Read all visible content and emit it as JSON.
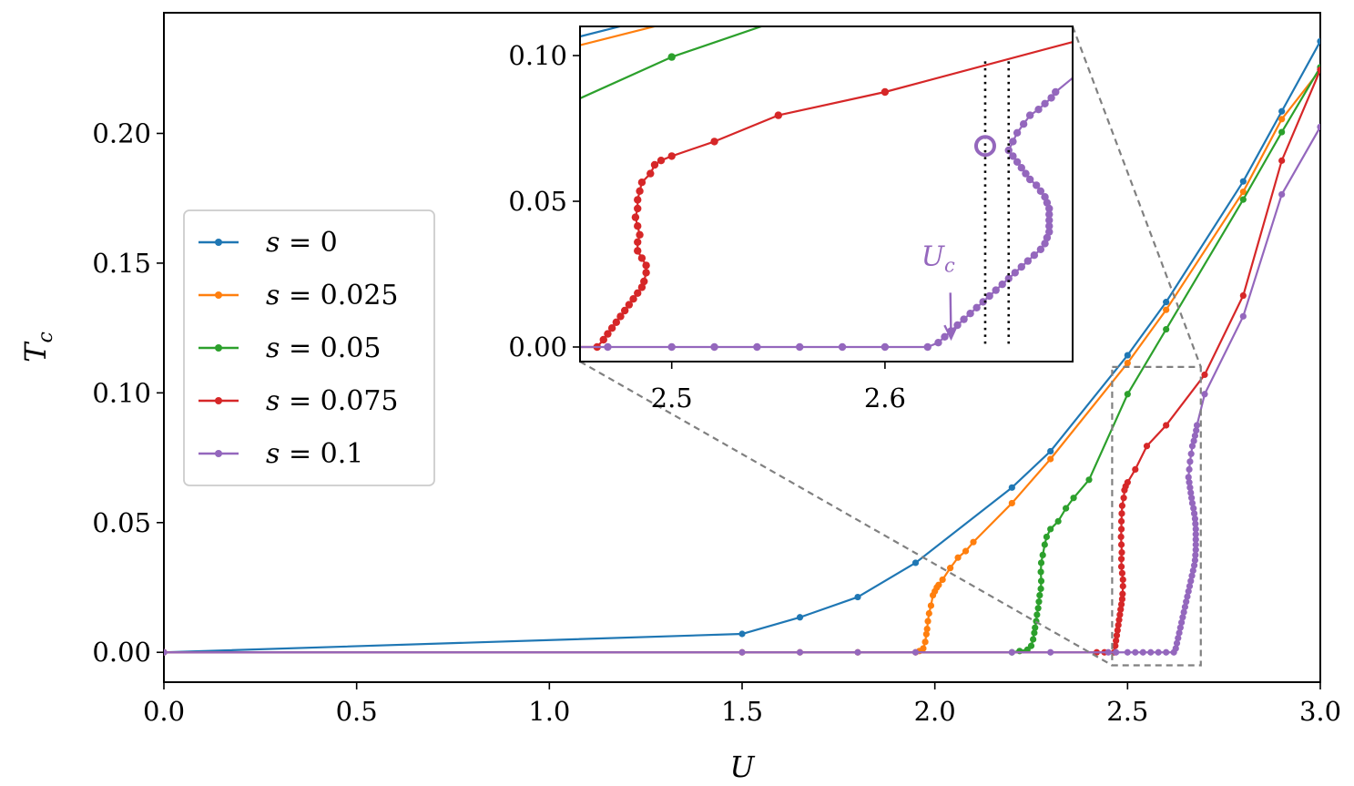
{
  "chart_data": {
    "type": "line",
    "xlabel": "U",
    "ylabel": "T",
    "ylabel_sub": "c",
    "xlim": [
      0.0,
      3.0
    ],
    "ylim": [
      -0.0115,
      0.2465
    ],
    "xticks": [
      0.0,
      0.5,
      1.0,
      1.5,
      2.0,
      2.5,
      3.0
    ],
    "xtick_labels": [
      "0.0",
      "0.5",
      "1.0",
      "1.5",
      "2.0",
      "2.5",
      "3.0"
    ],
    "yticks": [
      0.0,
      0.05,
      0.1,
      0.15,
      0.2
    ],
    "ytick_labels": [
      "0.00",
      "0.05",
      "0.10",
      "0.15",
      "0.20"
    ],
    "legend": {
      "placement": "center-left",
      "entries": [
        {
          "var": "s",
          "eq": " = ",
          "val": "0"
        },
        {
          "var": "s",
          "eq": " = ",
          "val": "0.025"
        },
        {
          "var": "s",
          "eq": " = ",
          "val": "0.05"
        },
        {
          "var": "s",
          "eq": " = ",
          "val": "0.075"
        },
        {
          "var": "s",
          "eq": " = ",
          "val": "0.1"
        }
      ]
    },
    "series": [
      {
        "name": "s = 0",
        "color": "#1f77b4",
        "points": [
          [
            0.0,
            0.0
          ],
          [
            1.5,
            0.0071
          ],
          [
            1.65,
            0.0135
          ],
          [
            1.8,
            0.0213
          ],
          [
            1.95,
            0.0345
          ],
          [
            2.2,
            0.0635
          ],
          [
            2.3,
            0.0775
          ],
          [
            2.5,
            0.1145
          ],
          [
            2.6,
            0.135
          ],
          [
            2.8,
            0.1815
          ],
          [
            2.9,
            0.2085
          ],
          [
            3.0,
            0.2355
          ]
        ]
      },
      {
        "name": "s = 0.025",
        "color": "#ff7f0e",
        "points": [
          [
            0.0,
            0.0
          ],
          [
            1.5,
            0.0
          ],
          [
            1.65,
            0.0
          ],
          [
            1.8,
            0.0
          ],
          [
            1.95,
            0.0
          ],
          [
            1.96,
            0.0005
          ],
          [
            1.97,
            0.0015
          ],
          [
            1.975,
            0.004
          ],
          [
            1.978,
            0.007
          ],
          [
            1.98,
            0.009
          ],
          [
            1.982,
            0.012
          ],
          [
            1.985,
            0.015
          ],
          [
            1.99,
            0.018
          ],
          [
            1.995,
            0.022
          ],
          [
            2.0,
            0.0235
          ],
          [
            2.005,
            0.025
          ],
          [
            2.01,
            0.026
          ],
          [
            2.02,
            0.028
          ],
          [
            2.04,
            0.0325
          ],
          [
            2.06,
            0.0365
          ],
          [
            2.08,
            0.039
          ],
          [
            2.1,
            0.0425
          ],
          [
            2.2,
            0.0575
          ],
          [
            2.3,
            0.0745
          ],
          [
            2.5,
            0.1115
          ],
          [
            2.6,
            0.132
          ],
          [
            2.8,
            0.1775
          ],
          [
            2.9,
            0.2055
          ],
          [
            3.0,
            0.2245
          ]
        ]
      },
      {
        "name": "s = 0.05",
        "color": "#2ca02c",
        "points": [
          [
            0.0,
            0.0
          ],
          [
            2.2,
            0.0
          ],
          [
            2.22,
            0.0005
          ],
          [
            2.24,
            0.001
          ],
          [
            2.25,
            0.0025
          ],
          [
            2.255,
            0.005
          ],
          [
            2.258,
            0.0075
          ],
          [
            2.26,
            0.0095
          ],
          [
            2.263,
            0.012
          ],
          [
            2.265,
            0.0145
          ],
          [
            2.268,
            0.017
          ],
          [
            2.27,
            0.0195
          ],
          [
            2.272,
            0.022
          ],
          [
            2.275,
            0.0245
          ],
          [
            2.276,
            0.0275
          ],
          [
            2.275,
            0.031
          ],
          [
            2.276,
            0.0345
          ],
          [
            2.28,
            0.0375
          ],
          [
            2.285,
            0.0415
          ],
          [
            2.29,
            0.0445
          ],
          [
            2.3,
            0.0475
          ],
          [
            2.32,
            0.0505
          ],
          [
            2.34,
            0.0555
          ],
          [
            2.36,
            0.0595
          ],
          [
            2.4,
            0.0665
          ],
          [
            2.5,
            0.0995
          ],
          [
            2.6,
            0.1245
          ],
          [
            2.8,
            0.1745
          ],
          [
            2.9,
            0.2005
          ],
          [
            3.0,
            0.2255
          ]
        ]
      },
      {
        "name": "s = 0.075",
        "color": "#d62728",
        "points": [
          [
            0.0,
            0.0
          ],
          [
            2.42,
            0.0
          ],
          [
            2.44,
            0.0
          ],
          [
            2.465,
            0.0
          ],
          [
            2.468,
            0.0025
          ],
          [
            2.47,
            0.0045
          ],
          [
            2.472,
            0.0065
          ],
          [
            2.474,
            0.0085
          ],
          [
            2.476,
            0.0105
          ],
          [
            2.478,
            0.0125
          ],
          [
            2.48,
            0.0145
          ],
          [
            2.482,
            0.0165
          ],
          [
            2.484,
            0.0185
          ],
          [
            2.486,
            0.0205
          ],
          [
            2.487,
            0.0225
          ],
          [
            2.488,
            0.0255
          ],
          [
            2.488,
            0.028
          ],
          [
            2.486,
            0.0305
          ],
          [
            2.484,
            0.033
          ],
          [
            2.484,
            0.036
          ],
          [
            2.485,
            0.0385
          ],
          [
            2.484,
            0.0415
          ],
          [
            2.483,
            0.0445
          ],
          [
            2.484,
            0.0475
          ],
          [
            2.484,
            0.0505
          ],
          [
            2.485,
            0.0535
          ],
          [
            2.486,
            0.0565
          ],
          [
            2.49,
            0.0595
          ],
          [
            2.492,
            0.0625
          ],
          [
            2.495,
            0.064
          ],
          [
            2.5,
            0.0655
          ],
          [
            2.52,
            0.0705
          ],
          [
            2.55,
            0.0795
          ],
          [
            2.6,
            0.0875
          ],
          [
            2.7,
            0.107
          ],
          [
            2.8,
            0.1375
          ],
          [
            2.9,
            0.1895
          ],
          [
            3.0,
            0.2245
          ]
        ]
      },
      {
        "name": "s = 0.1",
        "color": "#9467bd",
        "points": [
          [
            0.0,
            0.0
          ],
          [
            1.5,
            0.0
          ],
          [
            1.65,
            0.0
          ],
          [
            1.8,
            0.0
          ],
          [
            1.95,
            0.0
          ],
          [
            2.2,
            0.0
          ],
          [
            2.3,
            0.0
          ],
          [
            2.45,
            0.0
          ],
          [
            2.47,
            0.0
          ],
          [
            2.5,
            0.0
          ],
          [
            2.52,
            0.0
          ],
          [
            2.54,
            0.0
          ],
          [
            2.56,
            0.0
          ],
          [
            2.58,
            0.0
          ],
          [
            2.6,
            0.0
          ],
          [
            2.62,
            0.0
          ],
          [
            2.625,
            0.0015
          ],
          [
            2.628,
            0.0035
          ],
          [
            2.631,
            0.0055
          ],
          [
            2.634,
            0.0075
          ],
          [
            2.637,
            0.0095
          ],
          [
            2.64,
            0.0115
          ],
          [
            2.643,
            0.0135
          ],
          [
            2.646,
            0.0155
          ],
          [
            2.649,
            0.0175
          ],
          [
            2.652,
            0.0195
          ],
          [
            2.655,
            0.0215
          ],
          [
            2.658,
            0.0235
          ],
          [
            2.661,
            0.0255
          ],
          [
            2.664,
            0.0275
          ],
          [
            2.667,
            0.0295
          ],
          [
            2.67,
            0.0315
          ],
          [
            2.673,
            0.0335
          ],
          [
            2.675,
            0.0355
          ],
          [
            2.676,
            0.0375
          ],
          [
            2.677,
            0.0395
          ],
          [
            2.677,
            0.0415
          ],
          [
            2.677,
            0.0435
          ],
          [
            2.677,
            0.0455
          ],
          [
            2.677,
            0.0475
          ],
          [
            2.676,
            0.0495
          ],
          [
            2.675,
            0.0515
          ],
          [
            2.673,
            0.0535
          ],
          [
            2.671,
            0.0555
          ],
          [
            2.668,
            0.0575
          ],
          [
            2.666,
            0.0595
          ],
          [
            2.664,
            0.0615
          ],
          [
            2.662,
            0.0635
          ],
          [
            2.66,
            0.0655
          ],
          [
            2.658,
            0.0675
          ],
          [
            2.66,
            0.0705
          ],
          [
            2.662,
            0.0735
          ],
          [
            2.665,
            0.0765
          ],
          [
            2.668,
            0.0795
          ],
          [
            2.672,
            0.0815
          ],
          [
            2.675,
            0.0835
          ],
          [
            2.678,
            0.0855
          ],
          [
            2.68,
            0.0875
          ],
          [
            2.7,
            0.0995
          ],
          [
            2.8,
            0.1295
          ],
          [
            2.9,
            0.1765
          ],
          [
            3.0,
            0.2025
          ]
        ]
      }
    ],
    "zoom_box": {
      "xlim": [
        2.46,
        2.69
      ],
      "ylim": [
        -0.005,
        0.11
      ]
    },
    "inset": {
      "xlim": [
        2.457,
        2.688
      ],
      "ylim": [
        -0.005,
        0.11
      ],
      "xticks": [
        2.5,
        2.6
      ],
      "xtick_labels": [
        "2.5",
        "2.6"
      ],
      "yticks": [
        0.0,
        0.05,
        0.1
      ],
      "ytick_labels": [
        "0.00",
        "0.05",
        "0.10"
      ],
      "vlines": [
        2.647,
        2.658
      ],
      "marker_point": {
        "x": 2.647,
        "y": 0.069,
        "series": "s = 0.1"
      },
      "annotation": {
        "label": "U",
        "sub": "c",
        "text_at": [
          2.617,
          0.028
        ],
        "arrow_to": [
          2.631,
          0.003
        ]
      }
    }
  }
}
